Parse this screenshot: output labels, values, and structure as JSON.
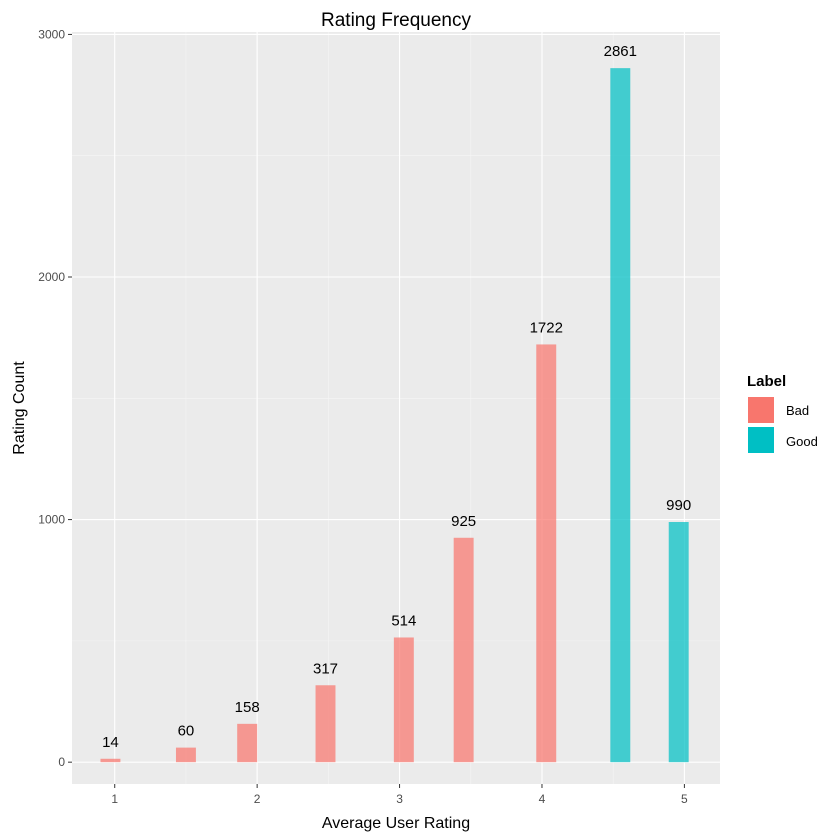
{
  "chart_data": {
    "type": "bar",
    "title": "Rating Frequency",
    "xlabel": "Average User Rating",
    "ylabel": "Rating Count",
    "xlim": [
      0.7,
      5.25
    ],
    "ylim": [
      -90,
      3010
    ],
    "x_ticks": [
      1,
      2,
      3,
      4,
      5
    ],
    "y_ticks": [
      0,
      1000,
      2000,
      3000
    ],
    "grid": true,
    "bar_width": 0.14,
    "legend": {
      "title": "Label",
      "position": "right",
      "entries": [
        {
          "name": "Bad",
          "color": "#F8766D"
        },
        {
          "name": "Good",
          "color": "#00BFC4"
        }
      ]
    },
    "bars": [
      {
        "x": 0.97,
        "value": 14,
        "label": "Bad"
      },
      {
        "x": 1.5,
        "value": 60,
        "label": "Bad"
      },
      {
        "x": 1.93,
        "value": 158,
        "label": "Bad"
      },
      {
        "x": 2.48,
        "value": 317,
        "label": "Bad"
      },
      {
        "x": 3.03,
        "value": 514,
        "label": "Bad"
      },
      {
        "x": 3.45,
        "value": 925,
        "label": "Bad"
      },
      {
        "x": 4.03,
        "value": 1722,
        "label": "Bad"
      },
      {
        "x": 4.55,
        "value": 2861,
        "label": "Good"
      },
      {
        "x": 4.96,
        "value": 990,
        "label": "Good"
      }
    ]
  }
}
